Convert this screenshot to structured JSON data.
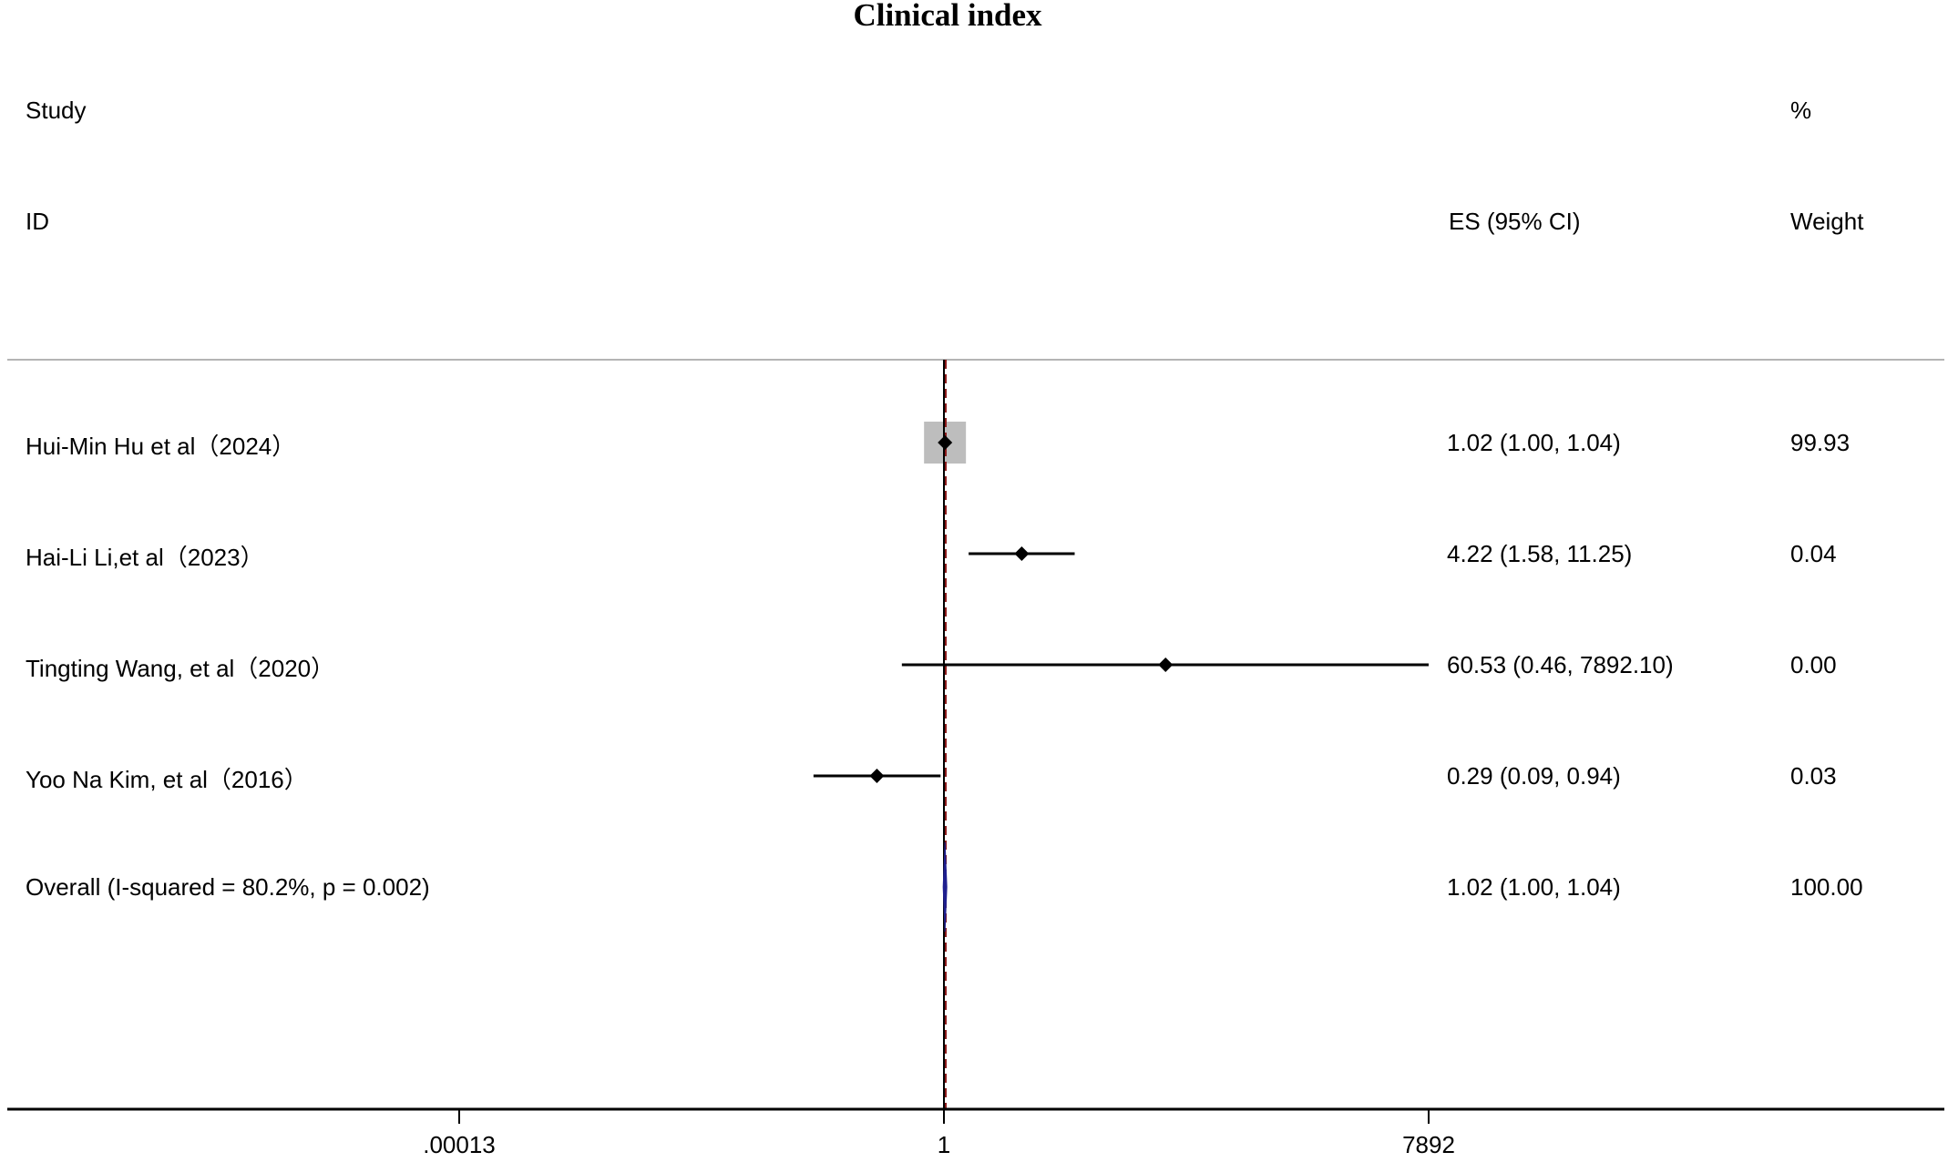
{
  "chart_data": {
    "type": "forest",
    "title": "Clinical index",
    "headers": {
      "study_line1": "Study",
      "study_line2": "ID",
      "es_label": "ES (95% CI)",
      "weight_line1": "%",
      "weight_line2": "Weight"
    },
    "studies": [
      {
        "label": "Hui-Min Hu et al（2024）",
        "es": 1.02,
        "lower": 1.0,
        "upper": 1.04,
        "es_text": "1.02 (1.00, 1.04)",
        "weight": 99.93,
        "weight_text": "99.93"
      },
      {
        "label": "Hai-Li Li,et al（2023）",
        "es": 4.22,
        "lower": 1.58,
        "upper": 11.25,
        "es_text": "4.22 (1.58, 11.25)",
        "weight": 0.04,
        "weight_text": "0.04"
      },
      {
        "label": "Tingting Wang, et al（2020）",
        "es": 60.53,
        "lower": 0.46,
        "upper": 7892.1,
        "es_text": "60.53 (0.46, 7892.10)",
        "weight": 0.0,
        "weight_text": "0.00"
      },
      {
        "label": "Yoo Na Kim, et al（2016）",
        "es": 0.29,
        "lower": 0.09,
        "upper": 0.94,
        "es_text": "0.29 (0.09, 0.94)",
        "weight": 0.03,
        "weight_text": "0.03"
      }
    ],
    "overall": {
      "label": "Overall  (I-squared = 80.2%, p = 0.002)",
      "es": 1.02,
      "lower": 1.0,
      "upper": 1.04,
      "es_text": "1.02 (1.00, 1.04)",
      "weight_text": "100.00"
    },
    "x_axis": {
      "scale": "log",
      "ticks": [
        0.00013,
        1,
        7892
      ],
      "tick_labels": [
        ".00013",
        "1",
        "7892"
      ],
      "null_value": 1
    },
    "colors": {
      "marker": "#000000",
      "weight_box": "#bdbdbd",
      "overall_diamond": "#1f1f8f",
      "overall_line": "#8b1a1a",
      "separator": "#b4b4b4"
    }
  }
}
